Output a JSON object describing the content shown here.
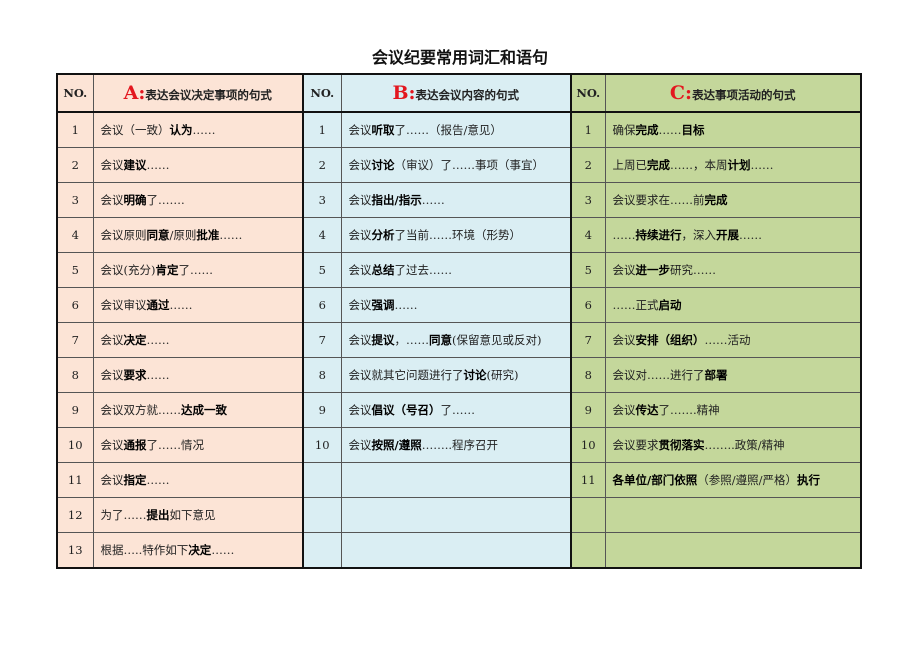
{
  "title": "会议纪要常用词汇和语句",
  "colors": {
    "section_a_bg": "#fce4d6",
    "section_b_bg": "#daeef3",
    "section_c_bg": "#c4d79b",
    "letter_red": "#e3171f"
  },
  "sections": [
    {
      "no_header": "NO.",
      "letter": "A:",
      "heading": "表达会议决定事项的句式",
      "items": [
        {
          "no": "1",
          "parts": [
            "会议（一致）",
            "认为",
            "……"
          ]
        },
        {
          "no": "2",
          "parts": [
            "会议",
            "建议",
            "……"
          ]
        },
        {
          "no": "3",
          "parts": [
            "会议",
            "明确",
            "了……."
          ]
        },
        {
          "no": "4",
          "parts": [
            "会议原则",
            "同意",
            "/原则",
            "批准",
            "……"
          ]
        },
        {
          "no": "5",
          "parts": [
            "会议(充分)",
            "肯定",
            "了……"
          ]
        },
        {
          "no": "6",
          "parts": [
            "会议审议",
            "通过",
            "……"
          ]
        },
        {
          "no": "7",
          "parts": [
            "会议",
            "决定",
            "……"
          ]
        },
        {
          "no": "8",
          "parts": [
            "会议",
            "要求",
            "……"
          ]
        },
        {
          "no": "9",
          "parts": [
            "会议双方就……",
            "达成一致",
            ""
          ]
        },
        {
          "no": "10",
          "parts": [
            "会议",
            "通报",
            "了……情况"
          ]
        },
        {
          "no": "11",
          "parts": [
            "会议",
            "指定",
            "……"
          ]
        },
        {
          "no": "12",
          "parts": [
            "为了……",
            "提出",
            "如下意见"
          ]
        },
        {
          "no": "13",
          "parts": [
            "根据…..特作如下",
            "决定",
            "……"
          ]
        }
      ]
    },
    {
      "no_header": "NO.",
      "letter": "B:",
      "heading": "表达会议内容的句式",
      "items": [
        {
          "no": "1",
          "parts": [
            "会议",
            "听取",
            "了……（报告/意见）"
          ]
        },
        {
          "no": "2",
          "parts": [
            "会议",
            "讨论",
            "（审议）了……事项（事宜）"
          ]
        },
        {
          "no": "3",
          "parts": [
            "会议",
            "指出/指示",
            "……"
          ]
        },
        {
          "no": "4",
          "parts": [
            "会议",
            "分析",
            "了当前……环境（形势）"
          ]
        },
        {
          "no": "5",
          "parts": [
            "会议",
            "总结",
            "了过去……"
          ]
        },
        {
          "no": "6",
          "parts": [
            "会议",
            "强调",
            "……"
          ]
        },
        {
          "no": "7",
          "parts": [
            "会议",
            "提议",
            "，……",
            "同意",
            "(保留意见或反对)"
          ]
        },
        {
          "no": "8",
          "parts": [
            "会议就其它问题进行了",
            "讨论",
            "(研究)"
          ]
        },
        {
          "no": "9",
          "parts": [
            "会议",
            "倡议（号召）",
            "了……"
          ]
        },
        {
          "no": "10",
          "parts": [
            "会议",
            "按照/遵照",
            "……..程序召开"
          ]
        }
      ]
    },
    {
      "no_header": "NO.",
      "letter": "C:",
      "heading": "表达事项活动的句式",
      "items": [
        {
          "no": "1",
          "parts": [
            "确保",
            "完成",
            "……",
            "目标",
            ""
          ]
        },
        {
          "no": "2",
          "parts": [
            "上周已",
            "完成",
            "……，本周",
            "计划",
            "……"
          ]
        },
        {
          "no": "3",
          "parts": [
            "会议要求在……前",
            "完成",
            ""
          ]
        },
        {
          "no": "4",
          "parts": [
            "……",
            "持续进行",
            "，深入",
            "开展",
            "……"
          ]
        },
        {
          "no": "5",
          "parts": [
            "会议",
            "进一步",
            "研究……"
          ]
        },
        {
          "no": "6",
          "parts": [
            "……正式",
            "启动",
            ""
          ]
        },
        {
          "no": "7",
          "parts": [
            "会议",
            "安排（组织）",
            "……活动"
          ]
        },
        {
          "no": "8",
          "parts": [
            "会议对……进行了",
            "部署",
            ""
          ]
        },
        {
          "no": "9",
          "parts": [
            "会议",
            "传达",
            "了…….精神"
          ]
        },
        {
          "no": "10",
          "parts": [
            "会议要求",
            "贯彻落实",
            "……..政策/精神"
          ]
        },
        {
          "no": "11",
          "parts": [
            "",
            "各单位/部门依照",
            "（参照/遵照/严格）",
            "执行",
            ""
          ]
        }
      ]
    }
  ]
}
